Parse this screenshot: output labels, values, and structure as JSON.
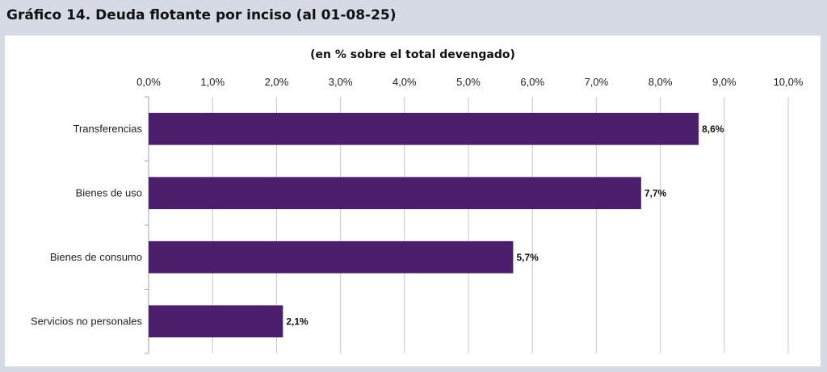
{
  "header": {
    "title": "Gráfico 14. Deuda flotante por inciso (al 01-08-25)"
  },
  "colors": {
    "bar": "#4b1f6b",
    "grid": "#c8c8c8",
    "background": "#d6dae5",
    "panel": "#ffffff"
  },
  "chart_data": {
    "type": "bar",
    "orientation": "horizontal",
    "title": "",
    "subtitle": "(en % sobre el total devengado)",
    "xlabel": "",
    "ylabel": "",
    "categories": [
      "Transferencias",
      "Bienes de uso",
      "Bienes de consumo",
      "Servicios no personales"
    ],
    "values": [
      8.6,
      7.7,
      5.7,
      2.1
    ],
    "data_labels": [
      "8,6%",
      "7,7%",
      "5,7%",
      "2,1%"
    ],
    "xlim": [
      0,
      10
    ],
    "tick_values": [
      0,
      1,
      2,
      3,
      4,
      5,
      6,
      7,
      8,
      9,
      10
    ],
    "tick_labels": [
      "0,0%",
      "1,0%",
      "2,0%",
      "3,0%",
      "4,0%",
      "5,0%",
      "6,0%",
      "7,0%",
      "8,0%",
      "9,0%",
      "10,0%"
    ],
    "axis_position": "top",
    "grid": true,
    "legend": "none"
  }
}
